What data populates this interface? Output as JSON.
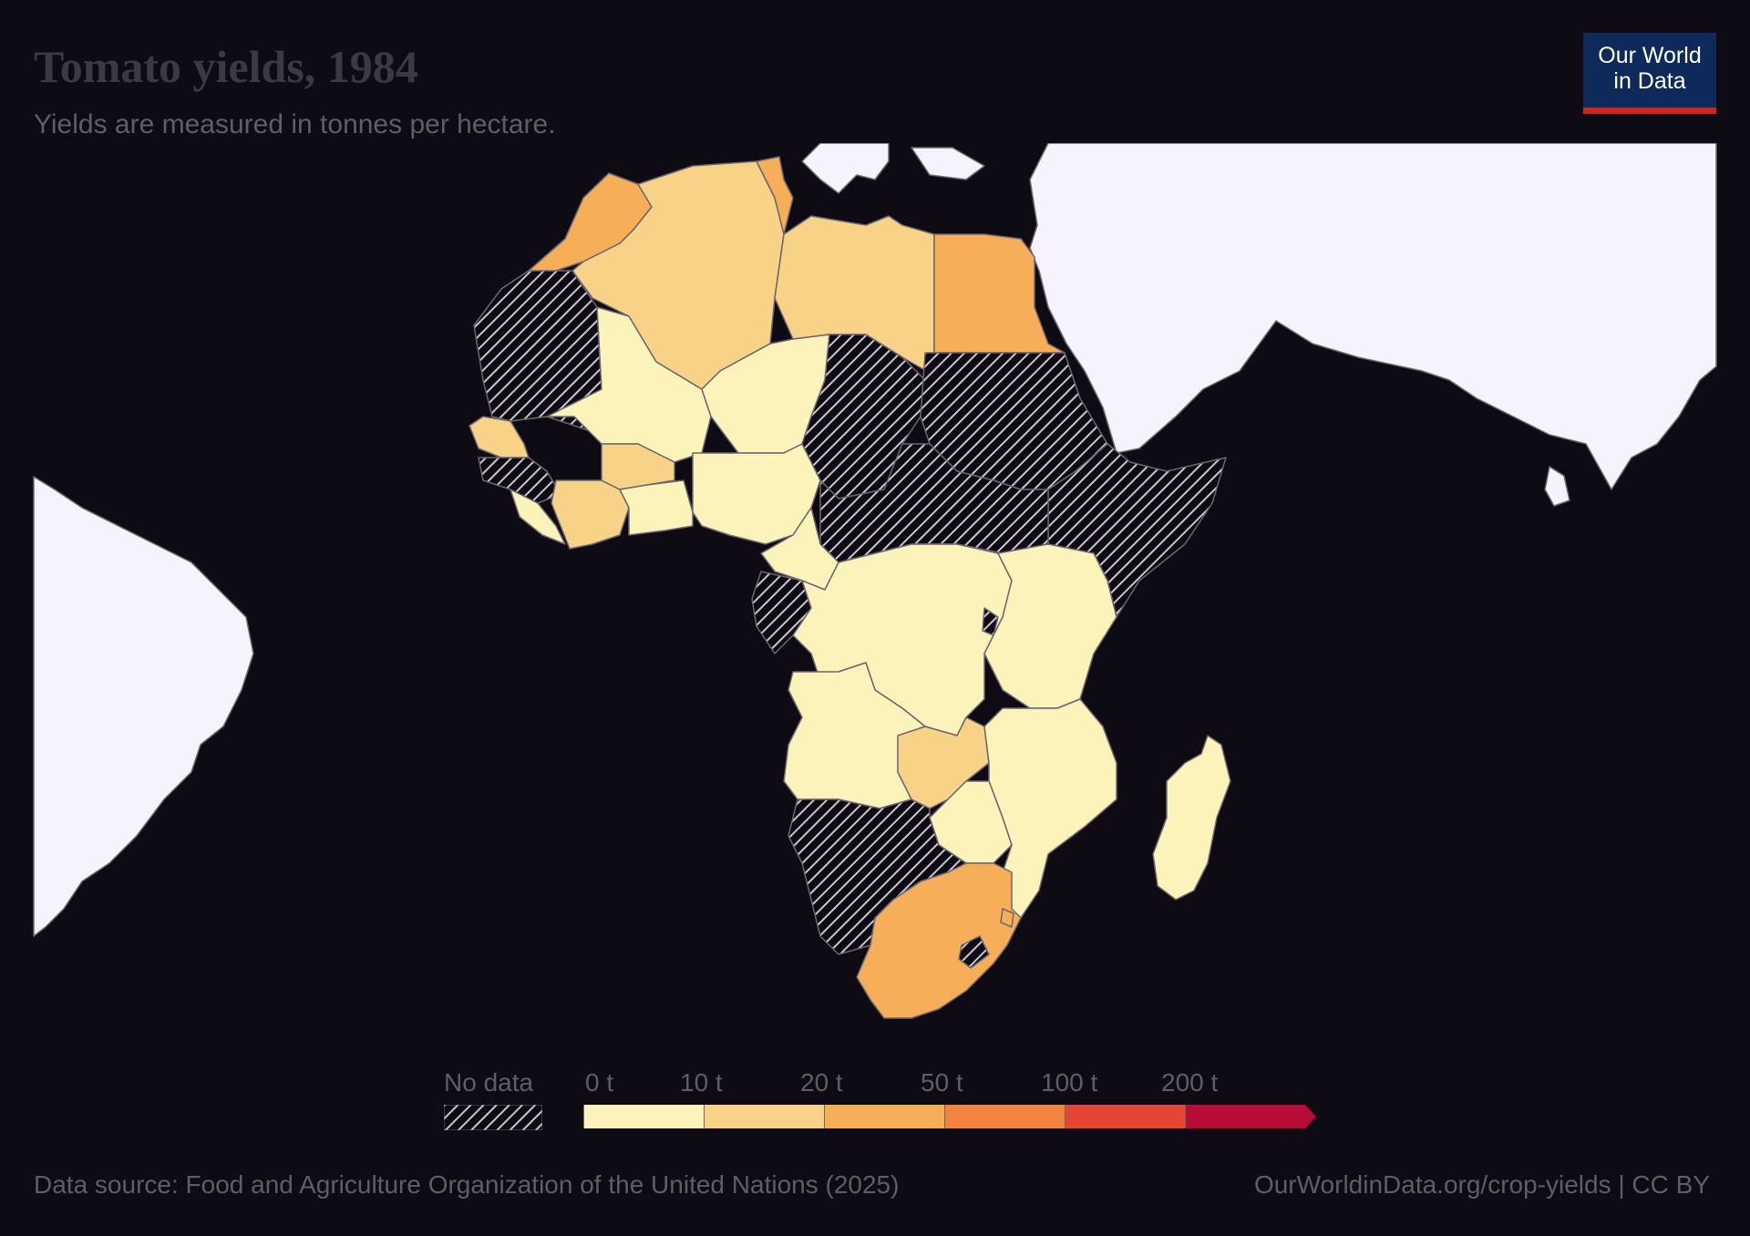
{
  "header": {
    "title": "Tomato yields, 1984",
    "subtitle": "Yields are measured in tonnes per hectare."
  },
  "logo": {
    "line1": "Our World",
    "line2": "in Data"
  },
  "legend": {
    "no_data_label": "No data",
    "bins": [
      {
        "label": "0 t",
        "color": "#fbf3ba"
      },
      {
        "label": "10 t",
        "color": "#f8d387"
      },
      {
        "label": "20 t",
        "color": "#f6ae59"
      },
      {
        "label": "50 t",
        "color": "#f3833f"
      },
      {
        "label": "100 t",
        "color": "#e44534"
      },
      {
        "label": "200 t",
        "color": "#b80c37"
      }
    ]
  },
  "colors": {
    "background": "#0e0b15",
    "other_land": "#f7f3fc",
    "border": "#6b6670",
    "no_data_hatch": "#c9c4d2"
  },
  "footer": {
    "source": "Data source: Food and Agriculture Organization of the United Nations (2025)",
    "credit": "OurWorldinData.org/crop-yields | CC BY"
  }
}
